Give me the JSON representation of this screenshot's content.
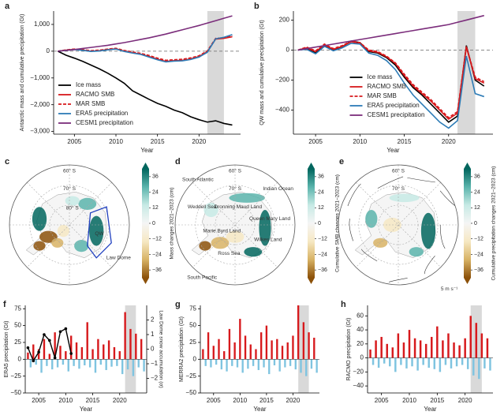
{
  "chart_data": [
    {
      "type": "line",
      "panel": "a",
      "ylabel": "Antarctic mass and cumulative precipitation (Gt)",
      "xlabel": "Year",
      "x": [
        2003,
        2004,
        2005,
        2006,
        2007,
        2008,
        2009,
        2010,
        2011,
        2012,
        2013,
        2014,
        2015,
        2016,
        2017,
        2018,
        2019,
        2020,
        2021,
        2022,
        2023,
        2024
      ],
      "series": [
        {
          "name": "Ice mass",
          "color": "#000000",
          "values": [
            0,
            -150,
            -260,
            -380,
            -520,
            -660,
            -820,
            -1000,
            -1200,
            -1480,
            -1640,
            -1800,
            -1950,
            -2060,
            -2200,
            -2300,
            -2450,
            -2560,
            -2650,
            -2600,
            -2700,
            -2760
          ]
        },
        {
          "name": "RACMO SMB",
          "color": "#d7191c",
          "values": [
            0,
            40,
            70,
            40,
            0,
            20,
            60,
            90,
            0,
            -60,
            -110,
            -200,
            -300,
            -380,
            -350,
            -340,
            -290,
            -200,
            -20,
            450,
            480,
            540
          ]
        },
        {
          "name": "MAR SMB",
          "color": "#d7191c",
          "dashed": true,
          "values": [
            0,
            50,
            80,
            60,
            20,
            40,
            80,
            110,
            30,
            -30,
            -80,
            -160,
            -260,
            -340,
            -320,
            -300,
            -250,
            -170,
            10,
            480,
            500,
            560
          ]
        },
        {
          "name": "ERA5 precipitation",
          "color": "#2c7bb6",
          "values": [
            0,
            30,
            60,
            30,
            -10,
            10,
            50,
            80,
            -10,
            -70,
            -120,
            -220,
            -320,
            -400,
            -370,
            -360,
            -310,
            -220,
            -40,
            460,
            520,
            620
          ]
        },
        {
          "name": "CESM1 precipitation",
          "color": "#7b2d7b",
          "values": [
            0,
            30,
            60,
            100,
            140,
            180,
            220,
            270,
            320,
            380,
            440,
            500,
            570,
            640,
            720,
            800,
            880,
            960,
            1050,
            1140,
            1230,
            1320
          ]
        }
      ],
      "xlim": [
        2002.5,
        2025
      ],
      "xticks": [
        2005,
        2010,
        2015,
        2020
      ],
      "ylim": [
        -3100,
        1500
      ],
      "yticks": [
        {
          "value": -3000,
          "label": "−3,000"
        },
        {
          "value": -2000,
          "label": "−2,000"
        },
        {
          "value": -1000,
          "label": "−1,000"
        },
        0,
        {
          "value": 1000,
          "label": "1,000"
        }
      ],
      "shade": [
        2021,
        2023
      ],
      "legend": "lower left"
    },
    {
      "type": "line",
      "panel": "b",
      "ylabel": "QW mass and cumulative precipitation (Gt)",
      "xlabel": "Year",
      "x": [
        2003,
        2004,
        2005,
        2006,
        2007,
        2008,
        2009,
        2010,
        2011,
        2012,
        2013,
        2014,
        2015,
        2016,
        2017,
        2018,
        2019,
        2020,
        2021,
        2022,
        2023,
        2024
      ],
      "series": [
        {
          "name": "Ice mass",
          "color": "#000000",
          "values": [
            0,
            10,
            -20,
            30,
            0,
            20,
            60,
            50,
            -10,
            -20,
            -50,
            -100,
            -180,
            -250,
            -300,
            -360,
            -420,
            -480,
            -440,
            30,
            -200,
            -240
          ]
        },
        {
          "name": "RACMO SMB",
          "color": "#d7191c",
          "values": [
            0,
            15,
            -10,
            35,
            5,
            25,
            55,
            45,
            -5,
            -15,
            -45,
            -90,
            -170,
            -240,
            -290,
            -340,
            -400,
            -460,
            -420,
            20,
            -190,
            -220
          ]
        },
        {
          "name": "MAR SMB",
          "color": "#d7191c",
          "dashed": true,
          "values": [
            0,
            20,
            -5,
            40,
            10,
            30,
            60,
            50,
            0,
            -10,
            -40,
            -85,
            -160,
            -230,
            -280,
            -330,
            -390,
            -450,
            -410,
            25,
            -180,
            -210
          ]
        },
        {
          "name": "ERA5 precipitation",
          "color": "#2c7bb6",
          "values": [
            0,
            5,
            -25,
            25,
            -5,
            15,
            45,
            40,
            -20,
            -35,
            -70,
            -130,
            -220,
            -300,
            -360,
            -420,
            -480,
            -520,
            -470,
            -40,
            -290,
            -310
          ]
        },
        {
          "name": "CESM1 precipitation",
          "color": "#7b2d7b",
          "values": [
            0,
            10,
            20,
            30,
            40,
            50,
            60,
            70,
            80,
            90,
            100,
            110,
            120,
            130,
            140,
            150,
            160,
            170,
            185,
            200,
            215,
            230
          ]
        }
      ],
      "xlim": [
        2002.5,
        2025
      ],
      "xticks": [
        2005,
        2010,
        2015,
        2020
      ],
      "ylim": [
        -560,
        260
      ],
      "yticks": [
        {
          "value": -400,
          "label": "−400"
        },
        {
          "value": -200,
          "label": "−200"
        },
        0,
        200
      ],
      "shade": [
        2021,
        2023
      ],
      "legend": "center"
    },
    {
      "type": "map",
      "panel": "c",
      "colormap": [
        "#8c5109",
        "#d8b365",
        "#f6e8c3",
        "#f5f5f5",
        "#c7eae5",
        "#5ab4ac",
        "#01665e"
      ],
      "colorbar_label": "Mass changes 2021–2023 (cm)",
      "clim": [
        -42,
        42
      ],
      "cticks": [
        {
          "value": -36,
          "label": "−36"
        },
        {
          "value": -24,
          "label": "−24"
        },
        {
          "value": -12,
          "label": "−12"
        },
        0,
        12,
        24,
        36
      ],
      "labels": [
        "60° S",
        "70° S",
        "80° S",
        "QW",
        "Law Dome"
      ]
    },
    {
      "type": "map",
      "panel": "d",
      "colormap": [
        "#8c5109",
        "#d8b365",
        "#f6e8c3",
        "#f5f5f5",
        "#c7eae5",
        "#5ab4ac",
        "#01665e"
      ],
      "colorbar_label": "Cumulative SMB changes 2021–2023 (cm)",
      "clim": [
        -42,
        42
      ],
      "cticks": [
        {
          "value": -36,
          "label": "−36"
        },
        {
          "value": -24,
          "label": "−24"
        },
        {
          "value": -12,
          "label": "−12"
        },
        0,
        12,
        24,
        36
      ],
      "labels": [
        "60° S",
        "70° S",
        "South Atlantic",
        "Indian Ocean",
        "South Pacific",
        "Weddell Sea",
        "Dronning Maud Land",
        "Queen Mary Land",
        "Wilkes Land",
        "Marie Byrd Land",
        "Ross Sea"
      ]
    },
    {
      "type": "map",
      "panel": "e",
      "colormap": [
        "#8c5109",
        "#d8b365",
        "#f6e8c3",
        "#f5f5f5",
        "#c7eae5",
        "#5ab4ac",
        "#01665e"
      ],
      "colorbar_label": "Cumulative precipitation changes 2021–2023 (cm)",
      "clim": [
        -42,
        42
      ],
      "cticks": [
        {
          "value": -36,
          "label": "−36"
        },
        {
          "value": -24,
          "label": "−24"
        },
        {
          "value": -12,
          "label": "−12"
        },
        0,
        12,
        24,
        36
      ],
      "labels": [
        "60° S",
        "70° S",
        "5 m s⁻¹"
      ]
    },
    {
      "type": "bar",
      "panel": "f",
      "ylabel": "ERA5 precipitation (Gt)",
      "xlabel": "Year",
      "x": [
        2003,
        2003.5,
        2004,
        2004.5,
        2005,
        2005.5,
        2006,
        2006.5,
        2007,
        2007.5,
        2008,
        2008.5,
        2009,
        2009.5,
        2010,
        2010.5,
        2011,
        2011.5,
        2012,
        2012.5,
        2013,
        2013.5,
        2014,
        2014.5,
        2015,
        2015.5,
        2016,
        2016.5,
        2017,
        2017.5,
        2018,
        2018.5,
        2019,
        2019.5,
        2020,
        2020.5,
        2021,
        2021.5,
        2022,
        2022.5,
        2023,
        2023.5,
        2024,
        2024.5
      ],
      "values": [
        10,
        -12,
        22,
        -8,
        15,
        -20,
        30,
        -10,
        8,
        -15,
        40,
        -12,
        20,
        -8,
        12,
        -18,
        35,
        -10,
        25,
        -14,
        18,
        -9,
        55,
        -12,
        15,
        -20,
        30,
        -8,
        22,
        -16,
        28,
        -11,
        18,
        -10,
        12,
        -22,
        70,
        -15,
        45,
        -25,
        38,
        -12,
        30,
        -18
      ],
      "pos_color": "#d7191c",
      "neg_color": "#7fc4e0",
      "xlim": [
        2002.5,
        2025
      ],
      "xticks": [
        2005,
        2010,
        2015,
        2020
      ],
      "ylim": [
        -50,
        80
      ],
      "yticks": [
        {
          "value": -50,
          "label": "−50"
        },
        {
          "value": -25,
          "label": "−25"
        },
        0,
        25,
        50,
        75
      ],
      "shade": [
        2021,
        2023
      ],
      "y2label": "Law Dome snow accumulation (σ)",
      "y2lim": [
        -3,
        3
      ],
      "y2ticks": [
        {
          "value": -2,
          "label": "−2"
        },
        {
          "value": -1,
          "label": "−1"
        },
        0,
        1,
        2
      ],
      "y2series": {
        "color": "#000000",
        "x": [
          2003,
          2004,
          2005,
          2006,
          2007,
          2008,
          2009,
          2010,
          2011
        ],
        "values": [
          0.1,
          -0.8,
          -0.2,
          1.0,
          0.6,
          -0.6,
          1.2,
          1.4,
          -0.3
        ]
      }
    },
    {
      "type": "bar",
      "panel": "g",
      "ylabel": "MERRA2 precipitation (Gt)",
      "xlabel": "Year",
      "x": [
        2003,
        2003.5,
        2004,
        2004.5,
        2005,
        2005.5,
        2006,
        2006.5,
        2007,
        2007.5,
        2008,
        2008.5,
        2009,
        2009.5,
        2010,
        2010.5,
        2011,
        2011.5,
        2012,
        2012.5,
        2013,
        2013.5,
        2014,
        2014.5,
        2015,
        2015.5,
        2016,
        2016.5,
        2017,
        2017.5,
        2018,
        2018.5,
        2019,
        2019.5,
        2020,
        2020.5,
        2021,
        2021.5,
        2022,
        2022.5,
        2023,
        2023.5,
        2024,
        2024.5
      ],
      "values": [
        15,
        -10,
        40,
        -12,
        20,
        -8,
        30,
        -15,
        12,
        -18,
        45,
        -10,
        25,
        -12,
        60,
        -20,
        35,
        -14,
        22,
        -10,
        15,
        -16,
        40,
        -12,
        50,
        -22,
        28,
        -9,
        30,
        -18,
        20,
        -12,
        25,
        -10,
        35,
        -15,
        80,
        -20,
        55,
        -25,
        40,
        -14,
        32,
        -20
      ],
      "pos_color": "#d7191c",
      "neg_color": "#7fc4e0",
      "xlim": [
        2002.5,
        2025
      ],
      "xticks": [
        2005,
        2010,
        2015,
        2020
      ],
      "ylim": [
        -50,
        80
      ],
      "yticks": [
        {
          "value": -50,
          "label": "−50"
        },
        {
          "value": -25,
          "label": "−25"
        },
        0,
        25,
        50,
        75
      ],
      "shade": [
        2021,
        2023
      ]
    },
    {
      "type": "bar",
      "panel": "h",
      "ylabel": "RACMO precipitation (Gt)",
      "xlabel": "Year",
      "x": [
        2003,
        2003.5,
        2004,
        2004.5,
        2005,
        2005.5,
        2006,
        2006.5,
        2007,
        2007.5,
        2008,
        2008.5,
        2009,
        2009.5,
        2010,
        2010.5,
        2011,
        2011.5,
        2012,
        2012.5,
        2013,
        2013.5,
        2014,
        2014.5,
        2015,
        2015.5,
        2016,
        2016.5,
        2017,
        2017.5,
        2018,
        2018.5,
        2019,
        2019.5,
        2020,
        2020.5,
        2021,
        2021.5,
        2022,
        2022.5,
        2023,
        2023.5,
        2024,
        2024.5
      ],
      "values": [
        12,
        -10,
        25,
        -14,
        30,
        -8,
        20,
        -12,
        15,
        -20,
        35,
        -10,
        22,
        -15,
        40,
        -12,
        28,
        -18,
        25,
        -10,
        20,
        -14,
        30,
        -16,
        45,
        -20,
        25,
        -10,
        35,
        -15,
        22,
        -12,
        18,
        -10,
        28,
        -16,
        60,
        -25,
        50,
        -30,
        35,
        -15,
        28,
        -18
      ],
      "pos_color": "#d7191c",
      "neg_color": "#7fc4e0",
      "xlim": [
        2002.5,
        2025
      ],
      "xticks": [
        2005,
        2010,
        2015,
        2020
      ],
      "ylim": [
        -50,
        75
      ],
      "yticks": [
        {
          "value": -40,
          "label": "−40"
        },
        {
          "value": -20,
          "label": "−20"
        },
        0,
        20,
        40,
        60
      ],
      "shade": [
        2021,
        2023
      ]
    }
  ]
}
